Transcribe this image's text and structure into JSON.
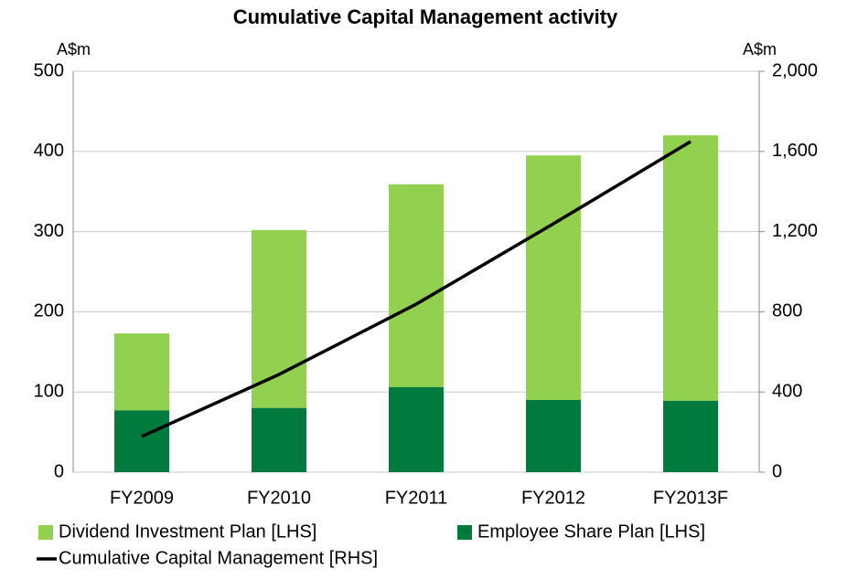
{
  "chart_data": {
    "type": "bar",
    "title": "Cumulative Capital Management activity",
    "ylabel": "A$m",
    "y2label": "A$m",
    "categories": [
      "FY2009",
      "FY2010",
      "FY2011",
      "FY2012",
      "FY2013F"
    ],
    "series": [
      {
        "name": "Dividend Investment Plan [LHS]",
        "color": "#92d050",
        "values": [
          96,
          222,
          253,
          305,
          331
        ]
      },
      {
        "name": "Employee Share Plan [LHS]",
        "color": "#007a3d",
        "values": [
          77,
          80,
          106,
          90,
          89
        ]
      },
      {
        "name": "Cumulative Capital Management [RHS]",
        "color": "#000000",
        "type": "line",
        "axis": "y2",
        "values": [
          178,
          487,
          838,
          1239,
          1649
        ]
      }
    ],
    "stacked": true,
    "ylim": [
      0,
      500
    ],
    "yticks": [
      0,
      100,
      200,
      300,
      400,
      500
    ],
    "y2lim": [
      0,
      2000
    ],
    "y2ticks": [
      0,
      {
        "value": 400,
        "label": "400"
      },
      800,
      {
        "value": 1200,
        "label": "1,200"
      },
      {
        "value": 1600,
        "label": "1,600"
      },
      {
        "value": 2000,
        "label": "2,000"
      }
    ],
    "grid": true
  }
}
